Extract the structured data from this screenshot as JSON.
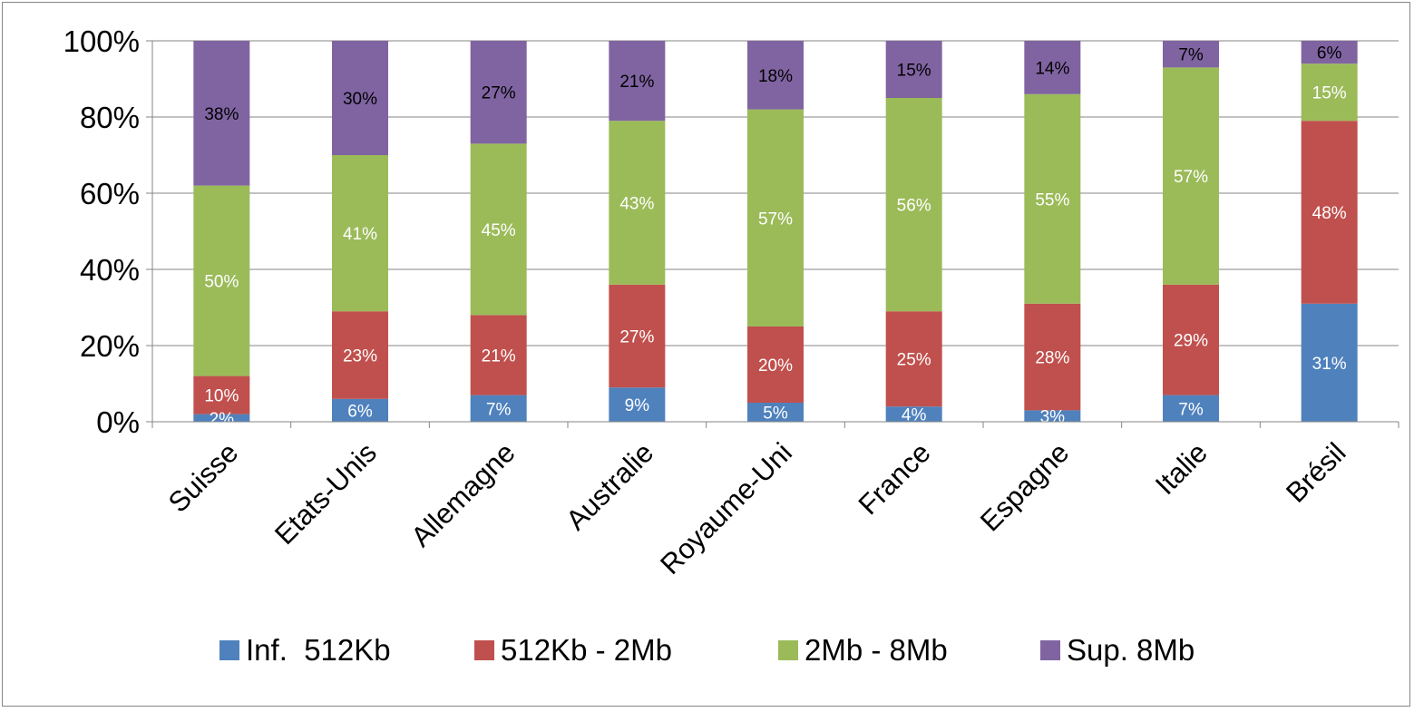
{
  "chart_data": {
    "type": "bar",
    "stacked": true,
    "percent_stacked": true,
    "categories": [
      "Suisse",
      "Etats-Unis",
      "Allemagne",
      "Australie",
      "Royaume-Uni",
      "France",
      "Espagne",
      "Italie",
      "Brésil"
    ],
    "series": [
      {
        "name": "Inf.  512Kb",
        "color": "#4f81bd",
        "label_color": "#ffffff",
        "values": [
          2,
          6,
          7,
          9,
          5,
          4,
          3,
          7,
          31
        ],
        "labels": [
          "2%",
          "6%",
          "7%",
          "9%",
          "5%",
          "4%",
          "3%",
          "7%",
          "31%"
        ]
      },
      {
        "name": "512Kb - 2Mb",
        "color": "#c0504d",
        "label_color": "#ffffff",
        "values": [
          10,
          23,
          21,
          27,
          20,
          25,
          28,
          29,
          48
        ],
        "labels": [
          "10%",
          "23%",
          "21%",
          "27%",
          "20%",
          "25%",
          "28%",
          "29%",
          "48%"
        ]
      },
      {
        "name": "2Mb - 8Mb",
        "color": "#9bbb59",
        "label_color": "#ffffff",
        "values": [
          50,
          41,
          45,
          43,
          57,
          56,
          55,
          57,
          15
        ],
        "labels": [
          "50%",
          "41%",
          "45%",
          "43%",
          "57%",
          "56%",
          "55%",
          "57%",
          "15%"
        ]
      },
      {
        "name": "Sup. 8Mb",
        "color": "#8064a2",
        "label_color": "#000000",
        "values": [
          38,
          30,
          27,
          21,
          18,
          15,
          14,
          7,
          6
        ],
        "labels": [
          "38%",
          "30%",
          "27%",
          "21%",
          "18%",
          "15%",
          "14%",
          "7%",
          "6%"
        ]
      }
    ],
    "yticks": [
      "0%",
      "20%",
      "40%",
      "60%",
      "80%",
      "100%"
    ],
    "ylim": [
      0,
      100
    ],
    "grid": true,
    "legend_position": "bottom"
  }
}
